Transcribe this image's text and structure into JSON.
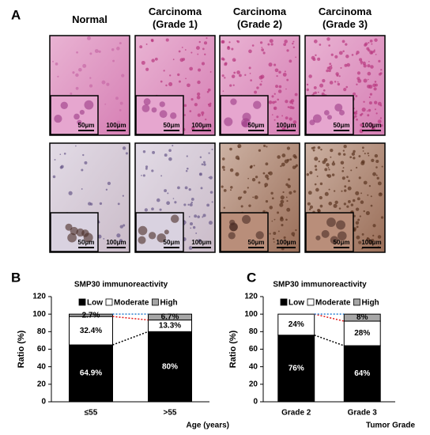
{
  "panel_a": {
    "label": "A",
    "columns": [
      "Normal",
      "Carcinoma\n(Grade 1)",
      "Carcinoma\n(Grade 2)",
      "Carcinoma\n(Grade 3)"
    ],
    "inset_scale": "50μm",
    "scale": "100μm"
  },
  "chart_data": [
    {
      "type": "bar",
      "stacked": true,
      "panel_label": "B",
      "title": "SMP30 immunoreactivity",
      "categories": [
        "≤55",
        ">55"
      ],
      "x_label": "Age (years)",
      "y_label": "Ratio (%)",
      "ylim": [
        0,
        120
      ],
      "yticks": [
        0,
        20,
        40,
        60,
        80,
        100,
        120
      ],
      "series": [
        {
          "name": "Low",
          "color": "#000000",
          "values": [
            64.9,
            80
          ],
          "value_labels": [
            "64.9%",
            "80%"
          ]
        },
        {
          "name": "Moderate",
          "color": "#ffffff",
          "values": [
            32.4,
            13.3
          ],
          "value_labels": [
            "32.4%",
            "13.3%"
          ]
        },
        {
          "name": "High",
          "color": "#a6a6a6",
          "values": [
            2.7,
            6.7
          ],
          "value_labels": [
            "2.7%",
            "6.7%"
          ]
        }
      ]
    },
    {
      "type": "bar",
      "stacked": true,
      "panel_label": "C",
      "title": "SMP30 immunoreactivity",
      "categories": [
        "Grade 2",
        "Grade 3"
      ],
      "x_label": "Tumor Grade",
      "y_label": "Ratio (%)",
      "ylim": [
        0,
        120
      ],
      "yticks": [
        0,
        20,
        40,
        60,
        80,
        100,
        120
      ],
      "series": [
        {
          "name": "Low",
          "color": "#000000",
          "values": [
            76,
            64
          ],
          "value_labels": [
            "76%",
            "64%"
          ]
        },
        {
          "name": "Moderate",
          "color": "#ffffff",
          "values": [
            24,
            28
          ],
          "value_labels": [
            "24%",
            "28%"
          ]
        },
        {
          "name": "High",
          "color": "#a6a6a6",
          "values": [
            0,
            8
          ],
          "value_labels": [
            null,
            "8%"
          ]
        }
      ]
    }
  ]
}
